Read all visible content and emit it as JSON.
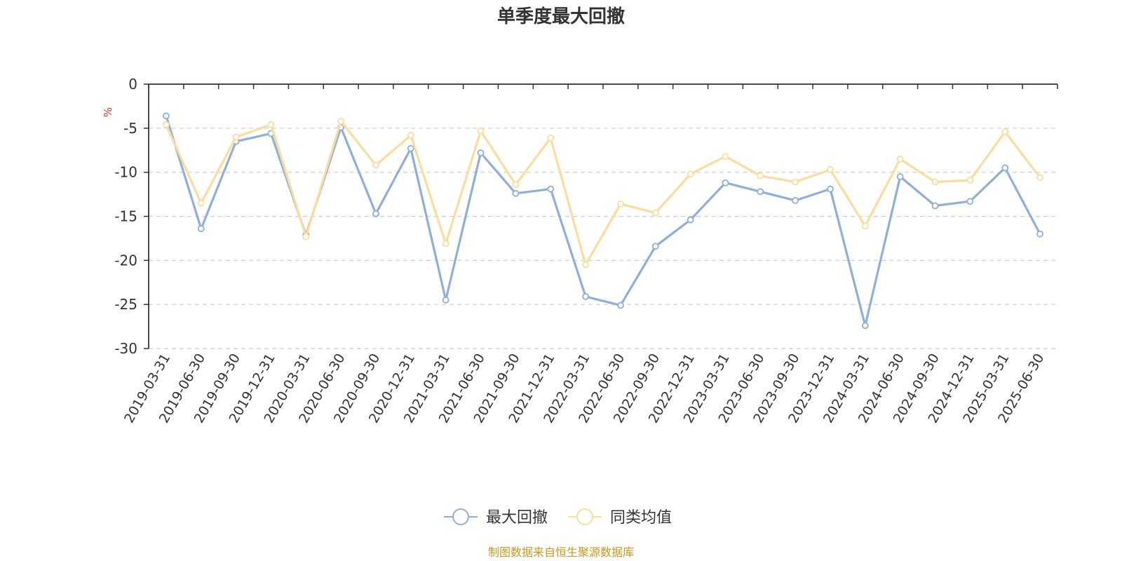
{
  "chart_data": {
    "type": "line",
    "title": "单季度最大回撤",
    "ylabel": "%",
    "ylim": [
      -30,
      0
    ],
    "yticks": [
      0,
      -5,
      -10,
      -15,
      -20,
      -25,
      -30
    ],
    "grid": true,
    "legend_position": "bottom",
    "categories": [
      "2019-03-31",
      "2019-06-30",
      "2019-09-30",
      "2019-12-31",
      "2020-03-31",
      "2020-06-30",
      "2020-09-30",
      "2020-12-31",
      "2021-03-31",
      "2021-06-30",
      "2021-09-30",
      "2021-12-31",
      "2022-03-31",
      "2022-06-30",
      "2022-09-30",
      "2022-12-31",
      "2023-03-31",
      "2023-06-30",
      "2023-09-30",
      "2023-12-31",
      "2024-03-31",
      "2024-06-30",
      "2024-09-30",
      "2024-12-31",
      "2025-03-31",
      "2025-06-30"
    ],
    "series": [
      {
        "name": "最大回撤",
        "color": "#8eaedb",
        "values": [
          -3.6,
          -16.4,
          -6.5,
          -5.6,
          -17.1,
          -4.9,
          -14.7,
          -7.3,
          -24.5,
          -7.8,
          -12.4,
          -11.9,
          -24.1,
          -25.1,
          -18.4,
          -15.4,
          -11.2,
          -12.2,
          -13.2,
          -11.9,
          -27.4,
          -10.5,
          -13.8,
          -13.3,
          -9.5,
          -17.0
        ]
      },
      {
        "name": "同类均值",
        "color": "#fbdc9c",
        "values": [
          -4.6,
          -13.5,
          -6.0,
          -4.6,
          -17.3,
          -4.2,
          -9.2,
          -5.8,
          -18.1,
          -5.3,
          -11.4,
          -6.1,
          -20.5,
          -13.6,
          -14.6,
          -10.2,
          -8.2,
          -10.4,
          -11.1,
          -9.7,
          -16.1,
          -8.5,
          -11.1,
          -10.9,
          -5.4,
          -10.6
        ]
      }
    ],
    "source": "制图数据来自恒生聚源数据库"
  }
}
